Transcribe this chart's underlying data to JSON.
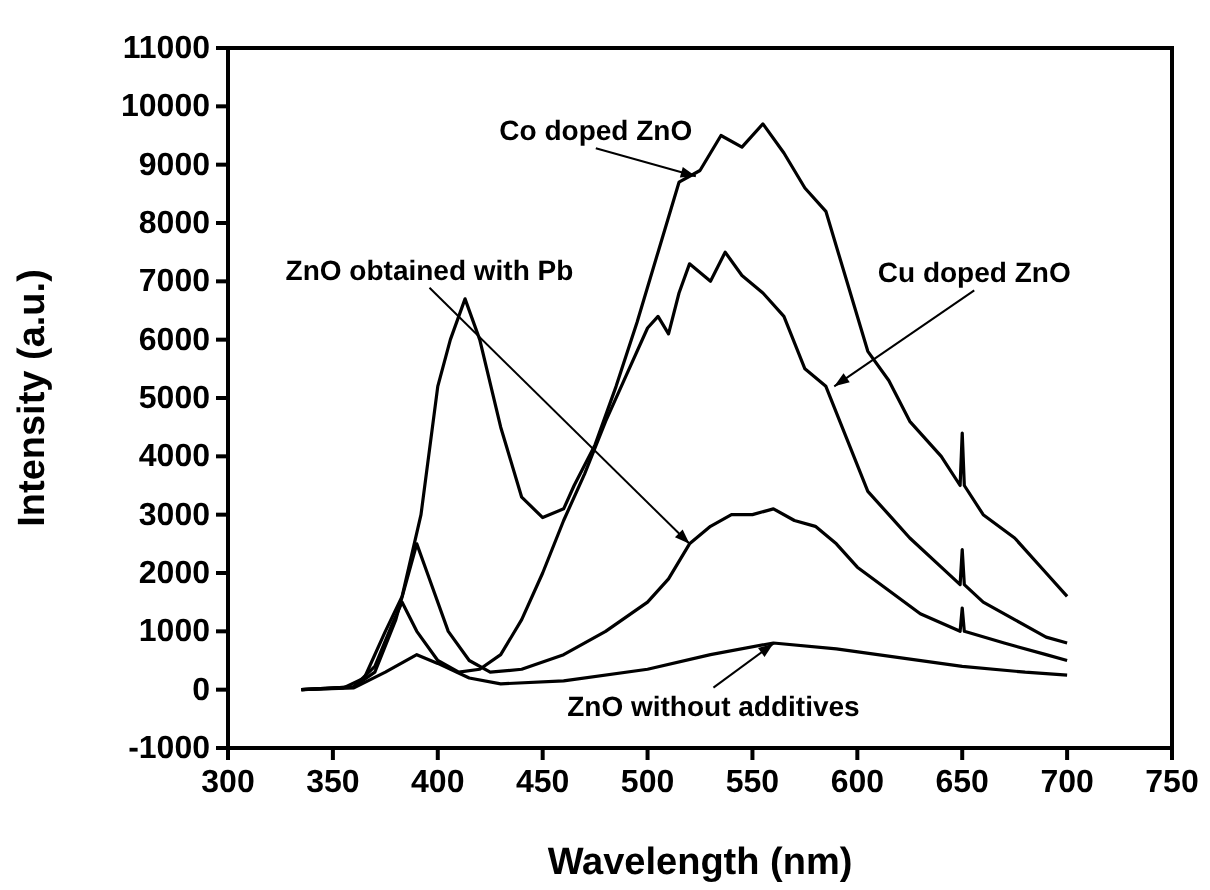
{
  "chart_data": {
    "type": "line",
    "xlabel": "Wavelength (nm)",
    "ylabel": "Intensity (a.u.)",
    "xlim": [
      300,
      750
    ],
    "xticks": [
      300,
      350,
      400,
      450,
      500,
      550,
      600,
      650,
      700,
      750
    ],
    "ylim": [
      -1000,
      11000
    ],
    "yticks": [
      -1000,
      0,
      1000,
      2000,
      3000,
      4000,
      5000,
      6000,
      7000,
      8000,
      9000,
      10000,
      11000
    ],
    "grid": false,
    "series": [
      {
        "color": "#000000",
        "x": [
          335,
          355,
          365,
          375,
          383,
          392,
          400,
          406,
          413,
          420,
          430,
          440,
          450,
          460,
          465,
          475,
          485,
          495,
          505,
          515,
          525,
          535,
          545,
          555,
          565,
          575,
          585,
          595,
          605,
          615,
          625,
          640,
          649,
          650,
          651,
          660,
          675,
          690,
          700
        ],
        "values": [
          0,
          30,
          200,
          1000,
          1600,
          3000,
          5200,
          6000,
          6700,
          6000,
          4500,
          3300,
          2950,
          3100,
          3500,
          4200,
          5200,
          6300,
          7500,
          8700,
          8900,
          9500,
          9300,
          9700,
          9200,
          8600,
          8200,
          7000,
          5800,
          5300,
          4600,
          4000,
          3500,
          4400,
          3500,
          3000,
          2600,
          2000,
          1600
        ]
      },
      {
        "color": "#000000",
        "x": [
          335,
          360,
          370,
          378,
          383,
          390,
          400,
          410,
          420,
          430,
          440,
          450,
          460,
          470,
          480,
          490,
          500,
          505,
          510,
          515,
          520,
          530,
          537,
          545,
          555,
          565,
          575,
          585,
          595,
          605,
          615,
          625,
          640,
          649,
          650,
          651,
          660,
          675,
          690,
          700
        ],
        "values": [
          0,
          50,
          400,
          1100,
          1500,
          1000,
          500,
          300,
          350,
          600,
          1200,
          2000,
          2900,
          3700,
          4600,
          5400,
          6200,
          6400,
          6100,
          6800,
          7300,
          7000,
          7500,
          7100,
          6800,
          6400,
          5500,
          5200,
          4300,
          3400,
          3000,
          2600,
          2100,
          1800,
          2400,
          1800,
          1500,
          1200,
          900,
          800
        ]
      },
      {
        "color": "#000000",
        "x": [
          335,
          360,
          370,
          380,
          390,
          395,
          405,
          415,
          425,
          440,
          460,
          480,
          500,
          510,
          520,
          530,
          540,
          550,
          560,
          570,
          580,
          590,
          600,
          615,
          630,
          649,
          650,
          651,
          670,
          690,
          700
        ],
        "values": [
          0,
          50,
          300,
          1200,
          2500,
          2000,
          1000,
          500,
          300,
          350,
          600,
          1000,
          1500,
          1900,
          2500,
          2800,
          3000,
          3000,
          3100,
          2900,
          2800,
          2500,
          2100,
          1700,
          1300,
          1000,
          1400,
          1000,
          800,
          600,
          500
        ]
      },
      {
        "color": "#000000",
        "x": [
          335,
          360,
          375,
          390,
          400,
          415,
          430,
          460,
          500,
          530,
          560,
          590,
          620,
          650,
          680,
          700
        ],
        "values": [
          0,
          30,
          300,
          600,
          450,
          200,
          100,
          150,
          350,
          600,
          800,
          700,
          550,
          400,
          300,
          250
        ]
      }
    ],
    "annotations": [
      {
        "text": "Co doped ZnO",
        "x": 523,
        "y": 8800
      },
      {
        "text": "ZnO obtained with Pb",
        "x": 520,
        "y": 2500
      },
      {
        "text": "Cu doped ZnO",
        "x": 589,
        "y": 5200
      },
      {
        "text": "ZnO without additives",
        "x": 560,
        "y": 790
      }
    ]
  }
}
